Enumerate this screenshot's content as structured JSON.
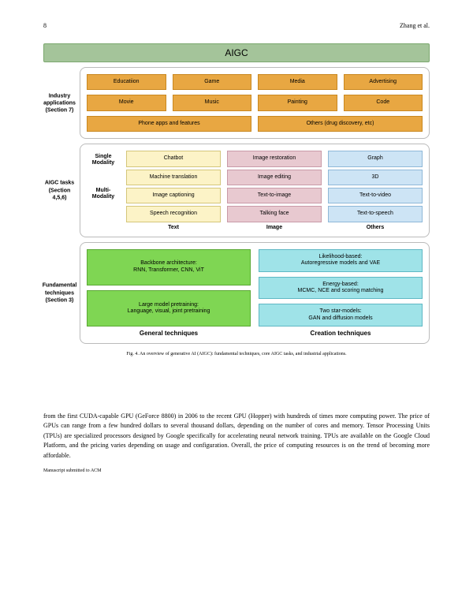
{
  "header": {
    "page_number": "8",
    "authors": "Zhang et al."
  },
  "figure": {
    "title": "AIGC",
    "colors": {
      "title_bg": "#a4c49a",
      "orange": "#e8a742",
      "yellow": "#fcf3c7",
      "pink": "#e8c9d0",
      "blue": "#cde4f5",
      "green": "#7fd653",
      "cyan": "#9fe3e8"
    },
    "industry": {
      "label": "Industry applications (Section 7)",
      "row1": [
        "Educatiion",
        "Game",
        "Media",
        "Advertising"
      ],
      "row2": [
        "Movie",
        "Music",
        "Painting",
        "Code"
      ],
      "row3": [
        "Phone apps and features",
        "Others (drug discovery, etc)"
      ]
    },
    "tasks": {
      "label": "AIGC tasks (Section 4,5,6)",
      "sublabels": {
        "single": "Single Modality",
        "multi": "Multi-Modality"
      },
      "col_headers": [
        "Text",
        "Image",
        "Others"
      ],
      "rows": [
        [
          "Chatbot",
          "Image restoration",
          "Graph"
        ],
        [
          "Machine translation",
          "Image editing",
          "3D"
        ],
        [
          "Image captioning",
          "Text-to-image",
          "Text-to-video"
        ],
        [
          "Speech recognition",
          "Talking face",
          "Text-to-speech"
        ]
      ]
    },
    "fundamental": {
      "label": "Fundamental techniques (Section 3)",
      "general": [
        "Backbone architecture:\nRNN, Transformer, CNN, ViT",
        "Large model pretraining:\nLanguage, visual, joint pretraining"
      ],
      "creation": [
        "Likelihood-based:\nAutoregressive models and VAE",
        "Energy-based:\nMCMC, NCE and scoring matching",
        "Two star-models:\nGAN and diffusion models"
      ],
      "captions": [
        "General techniques",
        "Creation techniques"
      ]
    },
    "caption": "Fig. 4.  An overview of generative AI (AIGC): fundamental techniques, core AIGC tasks, and industrial applications."
  },
  "body_paragraph": "from the first CUDA-capable GPU (GeForce 8800) in 2006 to the recent GPU (Hopper) with hundreds of times more computing power. The price of GPUs can range from a few hundred dollars to several thousand dollars, depending on the number of cores and memory. Tensor Processing Units (TPUs) are specialized processors designed by Google specifically for accelerating neural network training. TPUs are available on the Google Cloud Platform, and the pricing varies depending on usage and configuration. Overall, the price of computing resources is on the trend of becoming more affordable.",
  "footer": "Manuscript submitted to ACM"
}
